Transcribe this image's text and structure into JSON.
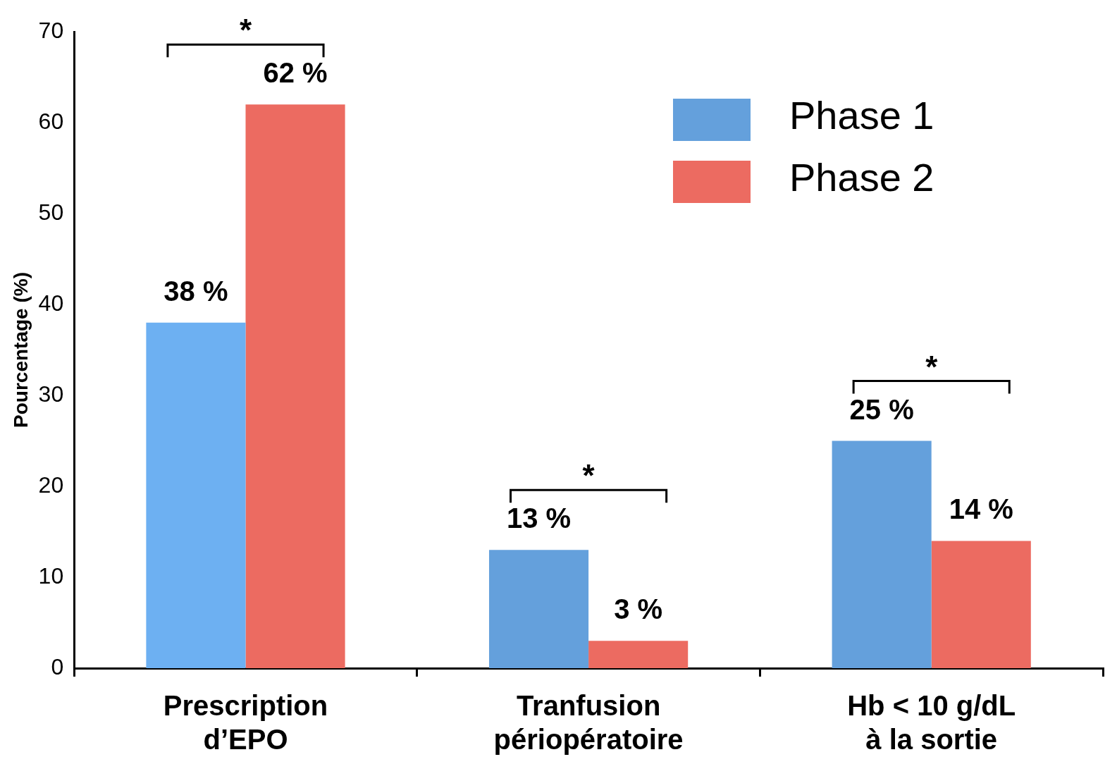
{
  "chart_data": {
    "type": "bar",
    "ylabel": "Pourcentage (%)",
    "categories": [
      "Prescription\nd’EPO",
      "Tranfusion\npériopératoire",
      "Hb < 10 g/dL\nà la sortie"
    ],
    "series": [
      {
        "name": "Phase 1",
        "color": "#64a0dc",
        "colors": [
          "#6db0f2",
          "#64a0dc",
          "#64a0dc"
        ],
        "values": [
          38,
          13,
          25
        ],
        "value_labels": [
          "38 %",
          "13 %",
          "25 %"
        ]
      },
      {
        "name": "Phase 2",
        "color": "#ec6b61",
        "values": [
          62,
          3,
          14
        ],
        "value_labels": [
          "62 %",
          "3 %",
          "14 %"
        ]
      }
    ],
    "ylim": [
      0,
      70
    ],
    "yticks": [
      0,
      10,
      20,
      30,
      40,
      50,
      60,
      70
    ],
    "grid": false,
    "legend": "top right",
    "annotations": [
      "*",
      "*",
      "*"
    ]
  }
}
